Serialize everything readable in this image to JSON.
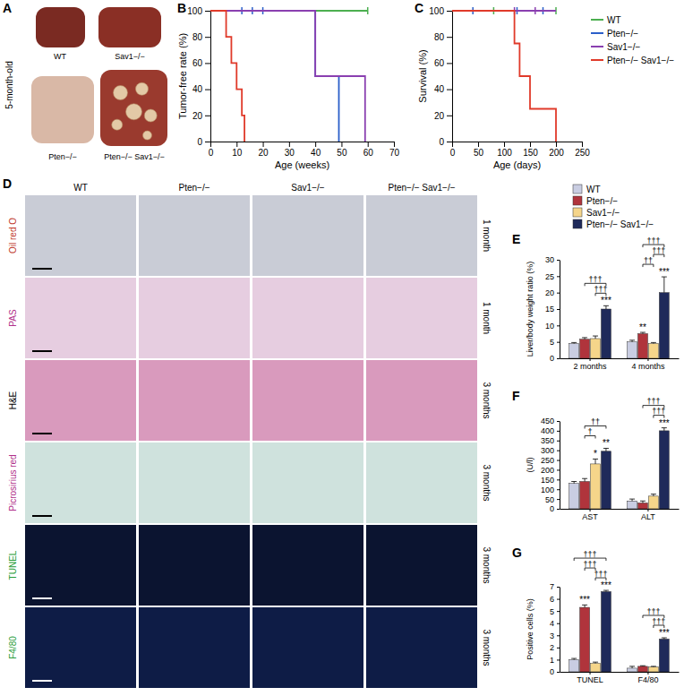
{
  "figure": {
    "panel_a": {
      "label": "A",
      "side_label": "5-month-old",
      "images": [
        {
          "caption": "WT"
        },
        {
          "caption": "Sav1−/−"
        },
        {
          "caption": "Pten−/−"
        },
        {
          "caption": "Pten−/− Sav1−/−"
        }
      ]
    },
    "panel_d": {
      "label": "D",
      "columns": [
        "WT",
        "Pten−/−",
        "Sav1−/−",
        "Pten−/− Sav1−/−"
      ],
      "rows": [
        {
          "stain": "Oil red O",
          "time": "1 month"
        },
        {
          "stain": "PAS",
          "time": "1 month"
        },
        {
          "stain": "H&E",
          "time": "3 months"
        },
        {
          "stain": "Picrosirius red",
          "time": "3 months"
        },
        {
          "stain": "TUNEL",
          "time": "3 months"
        },
        {
          "stain": "F4/80",
          "time": "3 months"
        }
      ]
    }
  },
  "chart_data": [
    {
      "type": "line",
      "panel": "B",
      "xlabel": "Age (weeks)",
      "ylabel": "Tumor-free rate (%)",
      "xlim": [
        0,
        70
      ],
      "xticks": [
        0,
        10,
        20,
        30,
        40,
        50,
        60,
        70
      ],
      "ylim": [
        0,
        100
      ],
      "yticks": [
        0,
        20,
        40,
        60,
        80,
        100
      ],
      "line_style": "step",
      "series": [
        {
          "color": "#4caf50",
          "x": [
            0,
            60
          ],
          "values": [
            100,
            100
          ],
          "censored_x": [
            60
          ],
          "censored_values": [
            100
          ]
        },
        {
          "color": "#2b5fc9",
          "x": [
            0,
            40,
            49
          ],
          "values": [
            100,
            50,
            0
          ],
          "censored_x": [
            12,
            16,
            20
          ],
          "censored_values": [
            100,
            100,
            100
          ]
        },
        {
          "color": "#8a3fb0",
          "x": [
            0,
            40,
            59
          ],
          "values": [
            100,
            50,
            0
          ]
        },
        {
          "color": "#e03a2a",
          "x": [
            0,
            6,
            8,
            10,
            12,
            13
          ],
          "values": [
            100,
            80,
            60,
            40,
            20,
            0
          ]
        }
      ]
    },
    {
      "type": "line",
      "panel": "C",
      "xlabel": "Age (days)",
      "ylabel": "Survival (%)",
      "xlim": [
        0,
        250
      ],
      "xticks": [
        0,
        50,
        100,
        150,
        200,
        250
      ],
      "ylim": [
        0,
        100
      ],
      "yticks": [
        0,
        20,
        40,
        60,
        80,
        100
      ],
      "line_style": "step",
      "legend": "upper right",
      "series": [
        {
          "name": "WT",
          "color": "#4caf50",
          "x": [
            0,
            200
          ],
          "values": [
            100,
            100
          ],
          "censored_x": [
            80,
            200
          ],
          "censored_values": [
            100,
            100
          ]
        },
        {
          "name": "Pten−/−",
          "color": "#2b5fc9",
          "x": [
            0,
            200
          ],
          "values": [
            100,
            100
          ],
          "censored_x": [
            40,
            125,
            175
          ],
          "censored_values": [
            100,
            100,
            100
          ]
        },
        {
          "name": "Sav1−/−",
          "color": "#8a3fb0",
          "x": [
            0,
            200
          ],
          "values": [
            100,
            100
          ],
          "censored_x": [
            120,
            160
          ],
          "censored_values": [
            100,
            100
          ]
        },
        {
          "name": "Pten−/− Sav1−/−",
          "color": "#e03a2a",
          "x": [
            0,
            120,
            130,
            150,
            200
          ],
          "values": [
            100,
            75,
            50,
            25,
            0
          ]
        }
      ]
    },
    {
      "type": "bar",
      "panel": "E",
      "ylabel": "Liver/body weight ratio (%)",
      "legend": "top",
      "categories": [
        "2 months",
        "4 months"
      ],
      "ylim": [
        0,
        30
      ],
      "yticks": [
        0,
        5,
        10,
        15,
        20,
        25,
        30
      ],
      "series": [
        {
          "name": "WT",
          "color": "#c9cde2",
          "values": [
            4.5,
            5.0
          ],
          "errors": [
            0.3,
            0.5
          ]
        },
        {
          "name": "Pten−/−",
          "color": "#b0343c",
          "values": [
            5.8,
            7.5
          ],
          "errors": [
            0.5,
            0.4
          ]
        },
        {
          "name": "Sav1−/−",
          "color": "#f5d58a",
          "values": [
            6.0,
            4.5
          ],
          "errors": [
            0.8,
            0.3
          ]
        },
        {
          "name": "Pten−/− Sav1−/−",
          "color": "#1f2a5a",
          "values": [
            15.0,
            20.0
          ],
          "errors": [
            1.0,
            4.8
          ]
        }
      ],
      "annotations": [
        {
          "text": "***",
          "category": "2 months",
          "series": "Pten−/− Sav1−/−"
        },
        {
          "text": "†††",
          "category": "2 months",
          "from": "Sav1−/−",
          "to": "Pten−/− Sav1−/−"
        },
        {
          "text": "†††",
          "category": "2 months",
          "from": "Pten−/−",
          "to": "Pten−/− Sav1−/−"
        },
        {
          "text": "**",
          "category": "4 months",
          "series": "Pten−/−"
        },
        {
          "text": "***",
          "category": "4 months",
          "series": "Pten−/− Sav1−/−"
        },
        {
          "text": "††",
          "category": "4 months",
          "from": "Pten−/−",
          "to": "Sav1−/−"
        },
        {
          "text": "†††",
          "category": "4 months",
          "from": "Sav1−/−",
          "to": "Pten−/− Sav1−/−"
        },
        {
          "text": "†††",
          "category": "4 months",
          "from": "Pten−/−",
          "to": "Pten−/− Sav1−/−"
        }
      ]
    },
    {
      "type": "bar",
      "panel": "F",
      "ylabel": "(U/l)",
      "categories": [
        "AST",
        "ALT"
      ],
      "ylim": [
        0,
        450
      ],
      "yticks": [
        0,
        50,
        100,
        150,
        200,
        250,
        300,
        350,
        400,
        450
      ],
      "series": [
        {
          "name": "WT",
          "color": "#c9cde2",
          "values": [
            130,
            40
          ],
          "errors": [
            10,
            10
          ]
        },
        {
          "name": "Pten−/−",
          "color": "#b0343c",
          "values": [
            140,
            30
          ],
          "errors": [
            15,
            10
          ]
        },
        {
          "name": "Sav1−/−",
          "color": "#f5d58a",
          "values": [
            230,
            65
          ],
          "errors": [
            25,
            10
          ]
        },
        {
          "name": "Pten−/− Sav1−/−",
          "color": "#1f2a5a",
          "values": [
            295,
            400
          ],
          "errors": [
            15,
            15
          ]
        }
      ],
      "annotations": [
        {
          "text": "*",
          "category": "AST",
          "series": "Sav1−/−"
        },
        {
          "text": "**",
          "category": "AST",
          "series": "Pten−/− Sav1−/−"
        },
        {
          "text": "†",
          "category": "AST",
          "from": "Pten−/−",
          "to": "Sav1−/−"
        },
        {
          "text": "††",
          "category": "AST",
          "from": "Pten−/−",
          "to": "Pten−/− Sav1−/−"
        },
        {
          "text": "***",
          "category": "ALT",
          "series": "Pten−/− Sav1−/−"
        },
        {
          "text": "†††",
          "category": "ALT",
          "from": "Sav1−/−",
          "to": "Pten−/− Sav1−/−"
        },
        {
          "text": "†††",
          "category": "ALT",
          "from": "Pten−/−",
          "to": "Pten−/− Sav1−/−"
        }
      ]
    },
    {
      "type": "bar",
      "panel": "G",
      "ylabel": "Positive cells (%)",
      "categories": [
        "TUNEL",
        "F4/80"
      ],
      "ylim": [
        0,
        7
      ],
      "yticks": [
        0,
        1,
        2,
        3,
        4,
        5,
        6,
        7
      ],
      "series": [
        {
          "name": "WT",
          "color": "#c9cde2",
          "values": [
            1.0,
            0.3
          ],
          "errors": [
            0.1,
            0.15
          ]
        },
        {
          "name": "Pten−/−",
          "color": "#b0343c",
          "values": [
            5.3,
            0.45
          ],
          "errors": [
            0.2,
            0.05
          ]
        },
        {
          "name": "Sav1−/−",
          "color": "#f5d58a",
          "values": [
            0.7,
            0.4
          ],
          "errors": [
            0.1,
            0.05
          ]
        },
        {
          "name": "Pten−/− Sav1−/−",
          "color": "#1f2a5a",
          "values": [
            6.6,
            2.7
          ],
          "errors": [
            0.1,
            0.1
          ]
        }
      ],
      "annotations": [
        {
          "text": "***",
          "category": "TUNEL",
          "series": "Pten−/−"
        },
        {
          "text": "***",
          "category": "TUNEL",
          "series": "Pten−/− Sav1−/−"
        },
        {
          "text": "†††",
          "category": "TUNEL",
          "from": "Sav1−/−",
          "to": "Pten−/− Sav1−/−"
        },
        {
          "text": "†††",
          "category": "TUNEL",
          "from": "Pten−/−",
          "to": "Sav1−/−"
        },
        {
          "text": "†††",
          "category": "TUNEL",
          "from": "WT",
          "to": "Pten−/− Sav1−/−"
        },
        {
          "text": "***",
          "category": "F4/80",
          "series": "Pten−/− Sav1−/−"
        },
        {
          "text": "†††",
          "category": "F4/80",
          "from": "Sav1−/−",
          "to": "Pten−/− Sav1−/−"
        },
        {
          "text": "†††",
          "category": "F4/80",
          "from": "Pten−/−",
          "to": "Pten−/− Sav1−/−"
        }
      ]
    }
  ]
}
